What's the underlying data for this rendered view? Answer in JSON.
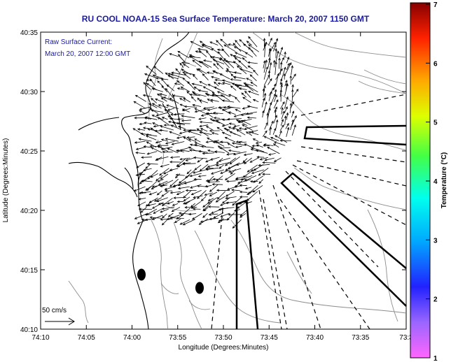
{
  "title": "RU COOL  NOAA-15  Sea Surface Temperature:  March 20, 2007 1150 GMT",
  "map": {
    "annotation_line1": "Raw Surface Current:",
    "annotation_line2": "March 20, 2007 12:00 GMT",
    "scale_label": "50 cm/s",
    "x_label": "Longitude (Degrees:Minutes)",
    "y_label": "Latitude (Degrees:Minutes)",
    "x_ticks": [
      "74:10",
      "74:05",
      "74:00",
      "73:55",
      "73:50",
      "73:45",
      "73:40",
      "73:35",
      "73:3"
    ],
    "y_ticks": [
      "40:35",
      "40:30",
      "40:25",
      "40:20",
      "40:15",
      "40:10"
    ]
  },
  "colorbar": {
    "label": "Temperature (°C)",
    "ticks": [
      "7",
      "6",
      "5",
      "4",
      "3",
      "2",
      "1"
    ],
    "range": [
      1,
      7
    ]
  },
  "colors": {
    "title": "#1a1aa0",
    "annotation": "#1a1aa0",
    "coast": "#000000",
    "contours": "#8c8c8c"
  }
}
